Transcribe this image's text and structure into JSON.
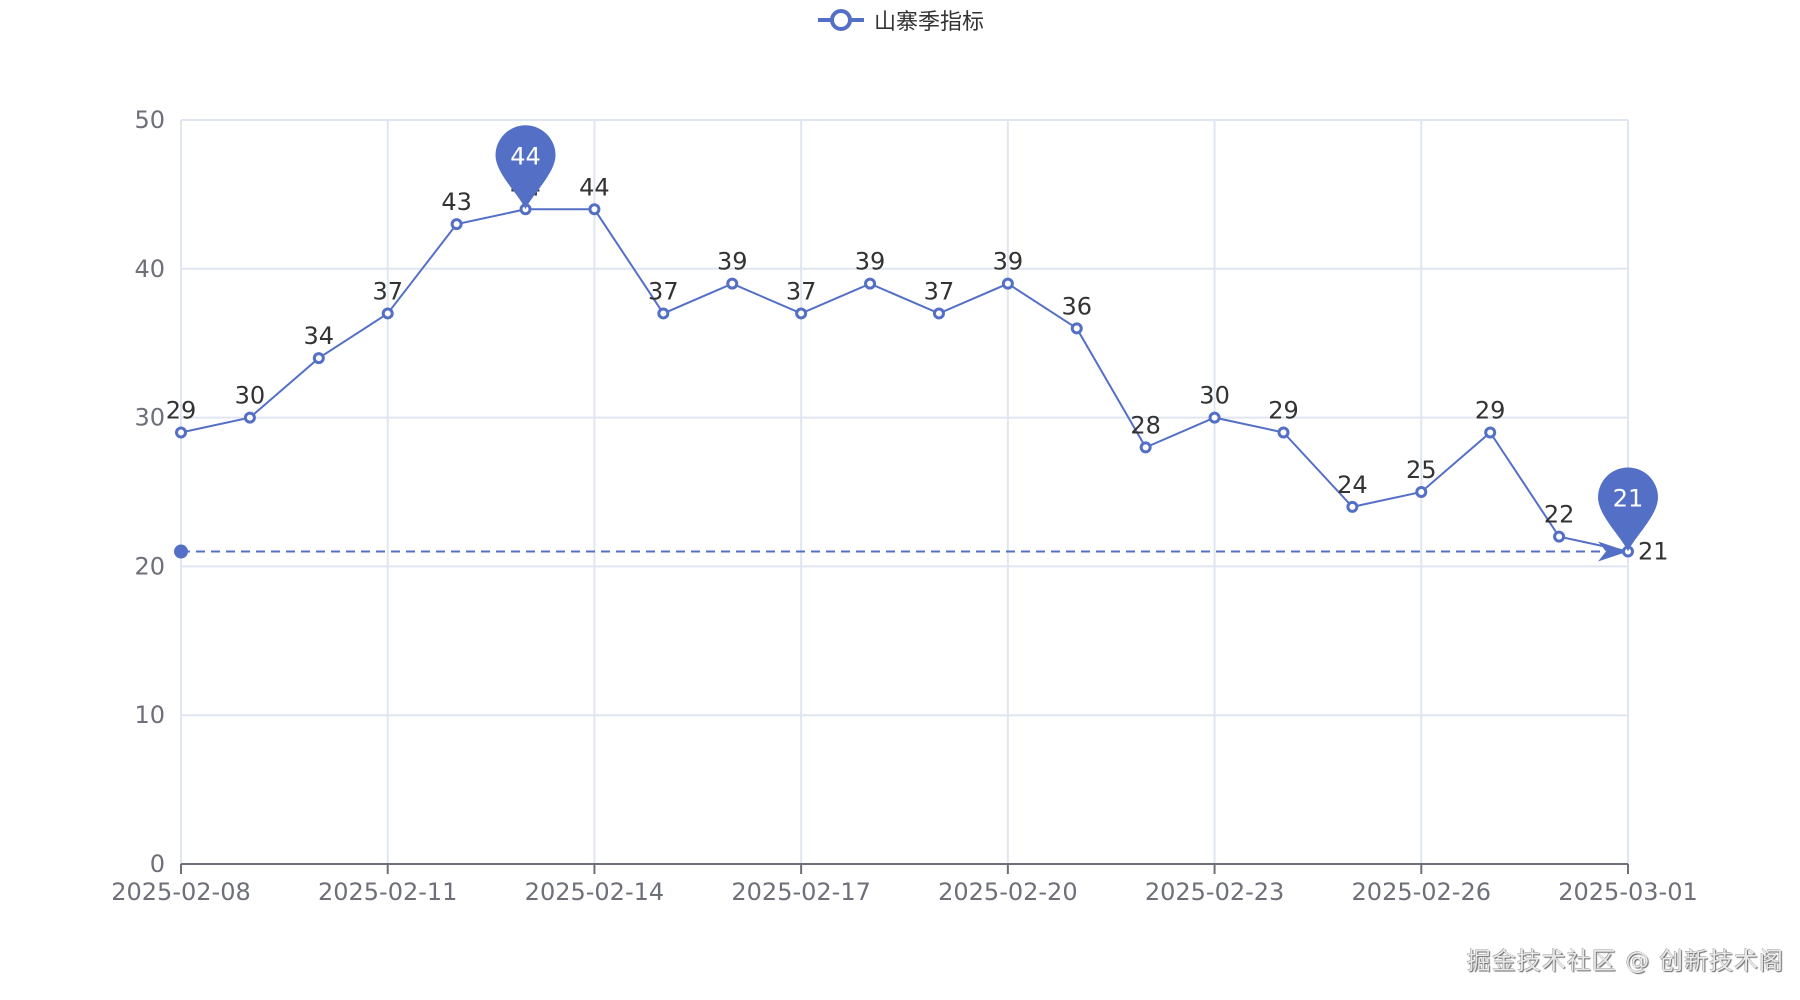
{
  "legend": {
    "label": "山寨季指标",
    "color": "#5470c6"
  },
  "watermark": "掘金技术社区 @ 创新技术阁",
  "chart_data": {
    "type": "line",
    "title": "",
    "xlabel": "",
    "ylabel": "",
    "legend": [
      "山寨季指标"
    ],
    "legend_position": "top-center",
    "grid": true,
    "ylim": [
      0,
      50
    ],
    "yticks": [
      0,
      10,
      20,
      30,
      40,
      50
    ],
    "x": [
      "2025-02-08",
      "2025-02-09",
      "2025-02-10",
      "2025-02-11",
      "2025-02-12",
      "2025-02-13",
      "2025-02-14",
      "2025-02-15",
      "2025-02-16",
      "2025-02-17",
      "2025-02-18",
      "2025-02-19",
      "2025-02-20",
      "2025-02-21",
      "2025-02-22",
      "2025-02-23",
      "2025-02-24",
      "2025-02-25",
      "2025-02-26",
      "2025-02-27",
      "2025-02-28",
      "2025-03-01"
    ],
    "xtick_labels": [
      "2025-02-08",
      "2025-02-11",
      "2025-02-14",
      "2025-02-17",
      "2025-02-20",
      "2025-02-23",
      "2025-02-26",
      "2025-03-01"
    ],
    "series": [
      {
        "name": "山寨季指标",
        "color": "#5470c6",
        "values": [
          29,
          30,
          34,
          37,
          43,
          44,
          44,
          37,
          39,
          37,
          39,
          37,
          39,
          36,
          28,
          30,
          29,
          24,
          25,
          29,
          22,
          21
        ]
      }
    ],
    "mark_points": [
      {
        "label": "44",
        "x": "2025-02-13",
        "value": 44,
        "type": "max"
      },
      {
        "label": "21",
        "x": "2025-03-01",
        "value": 21,
        "type": "min"
      }
    ],
    "mark_line": {
      "from": "2025-02-08",
      "to": "2025-03-01",
      "value": 21,
      "style": "dashed"
    }
  }
}
